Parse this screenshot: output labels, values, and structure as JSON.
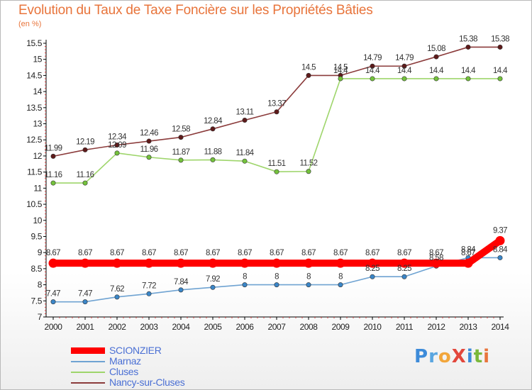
{
  "title": "Evolution du Taux de Taxe Foncière sur les Propriétés Bâties",
  "unit_label": "(en %)",
  "logo": {
    "text": "ProXiti",
    "letters": [
      "P",
      "r",
      "o",
      "X",
      "i",
      "t",
      "i"
    ],
    "colors": [
      "#3d8bd9",
      "#5aa6e0",
      "#f2a63b",
      "#e2473c",
      "#3d8bd9",
      "#7ab83a",
      "#e8743b"
    ]
  },
  "chart_data": {
    "type": "line",
    "title": "Evolution du Taux de Taxe Foncière sur les Propriétés Bâties",
    "ylabel": "(en %)",
    "xlabel": "",
    "x": [
      "2000",
      "2001",
      "2002",
      "2003",
      "2004",
      "2005",
      "2006",
      "2007",
      "2008",
      "2009",
      "2010",
      "2011",
      "2012",
      "2013",
      "2014"
    ],
    "ylim": [
      7,
      15.5
    ],
    "yticks": [
      "7",
      "7.5",
      "8",
      "8.5",
      "9",
      "9.5",
      "10",
      "10.5",
      "11",
      "11.5",
      "12",
      "12.5",
      "13",
      "13.5",
      "14",
      "14.5",
      "15",
      "15.5"
    ],
    "grid": false,
    "legend_position": "bottom-left",
    "series": [
      {
        "name": "SCIONZIER",
        "color": "#ff0000",
        "marker_color": "#ff0000",
        "values": [
          8.67,
          8.67,
          8.67,
          8.67,
          8.67,
          8.67,
          8.67,
          8.67,
          8.67,
          8.67,
          8.67,
          8.67,
          8.67,
          8.67,
          9.37
        ],
        "labels": [
          "8.67",
          "8.67",
          "8.67",
          "8.67",
          "8.67",
          "8.67",
          "8.67",
          "8.67",
          "8.67",
          "8.67",
          "8.67",
          "8.67",
          "8.67",
          "8.67",
          "9.37"
        ]
      },
      {
        "name": "Marnaz",
        "color": "#6fa3d2",
        "marker_color": "#3a86c8",
        "values": [
          7.47,
          7.47,
          7.62,
          7.72,
          7.84,
          7.92,
          8,
          8,
          8,
          8,
          8.25,
          8.25,
          8.58,
          8.84,
          8.84
        ],
        "labels": [
          "7.47",
          "7.47",
          "7.62",
          "7.72",
          "7.84",
          "7.92",
          "8",
          "8",
          "8",
          "8",
          "8.25",
          "8.25",
          "8.58",
          "8.84",
          "8.84"
        ]
      },
      {
        "name": "Cluses",
        "color": "#9ed56b",
        "marker_color": "#74c23c",
        "values": [
          11.16,
          11.16,
          12.09,
          11.96,
          11.87,
          11.88,
          11.84,
          11.51,
          11.52,
          14.4,
          14.4,
          14.4,
          14.4,
          14.4,
          14.4
        ],
        "labels": [
          "11.16",
          "11.16",
          "12.09",
          "11.96",
          "11.87",
          "11.88",
          "11.84",
          "11.51",
          "11.52",
          "14.4",
          "14.4",
          "14.4",
          "14.4",
          "14.4",
          "14.4"
        ]
      },
      {
        "name": "Nancy-sur-Cluses",
        "color": "#8b3b3b",
        "marker_color": "#5e1a1a",
        "values": [
          11.99,
          12.19,
          12.34,
          12.46,
          12.58,
          12.84,
          13.11,
          13.37,
          14.5,
          14.5,
          14.79,
          14.79,
          15.08,
          15.38,
          15.38
        ],
        "labels": [
          "11.99",
          "12.19",
          "12.34",
          "12.46",
          "12.58",
          "12.84",
          "13.11",
          "13.37",
          "14.5",
          "14.5",
          "14.79",
          "14.79",
          "15.08",
          "15.38",
          "15.38"
        ]
      }
    ]
  }
}
